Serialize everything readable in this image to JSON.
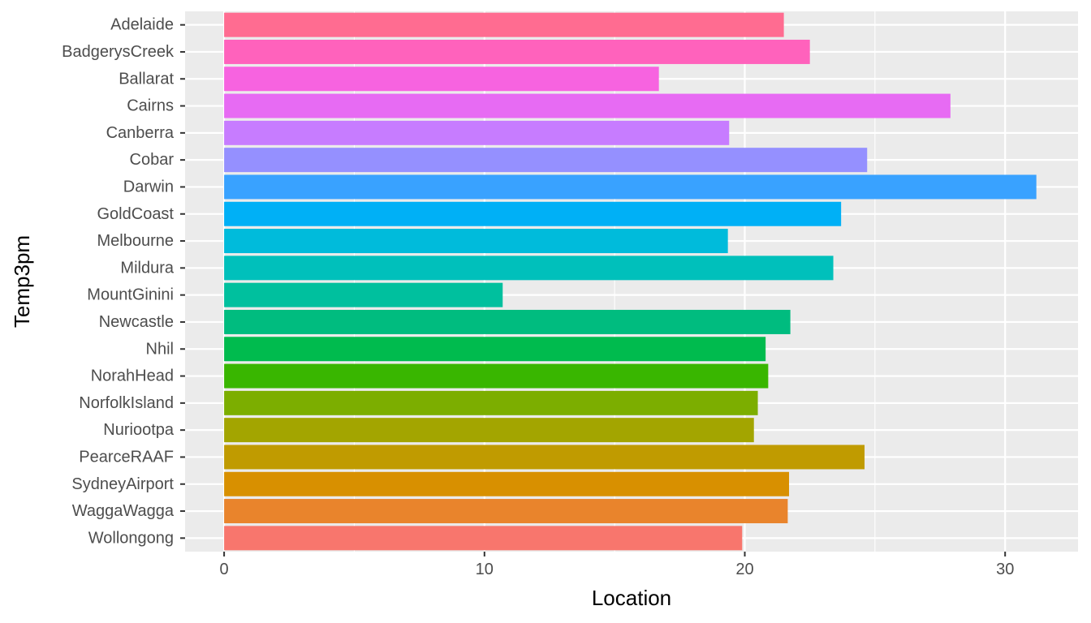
{
  "chart_data": {
    "type": "bar",
    "orientation": "horizontal",
    "xlabel": "Location",
    "ylabel": "Temp3pm",
    "xlim": [
      -1.5,
      32.8
    ],
    "x_ticks": [
      0,
      10,
      20,
      30
    ],
    "grid": true,
    "legend": "none",
    "panel_background": "#ebebeb",
    "categories": [
      "Adelaide",
      "BadgerysCreek",
      "Ballarat",
      "Cairns",
      "Canberra",
      "Cobar",
      "Darwin",
      "GoldCoast",
      "Melbourne",
      "Mildura",
      "MountGinini",
      "Newcastle",
      "Nhil",
      "NorahHead",
      "NorfolkIsland",
      "Nuriootpa",
      "PearceRAAF",
      "SydneyAirport",
      "WaggaWagga",
      "Wollongong"
    ],
    "values": [
      21.5,
      22.5,
      16.7,
      27.9,
      19.4,
      24.7,
      31.2,
      23.7,
      19.35,
      23.4,
      10.7,
      21.75,
      20.8,
      20.9,
      20.5,
      20.35,
      24.6,
      21.7,
      21.65,
      19.9
    ],
    "colors": [
      "#FF6C91",
      "#FF62BC",
      "#F763E0",
      "#E76BF3",
      "#C77CFF",
      "#9590FF",
      "#39A2FF",
      "#00B0F6",
      "#00BBDB",
      "#00C0BB",
      "#00C09E",
      "#00BC7F",
      "#00BB4E",
      "#39B600",
      "#7CAE00",
      "#A3A500",
      "#C09B00",
      "#D89000",
      "#E9842C",
      "#F8766D"
    ]
  }
}
